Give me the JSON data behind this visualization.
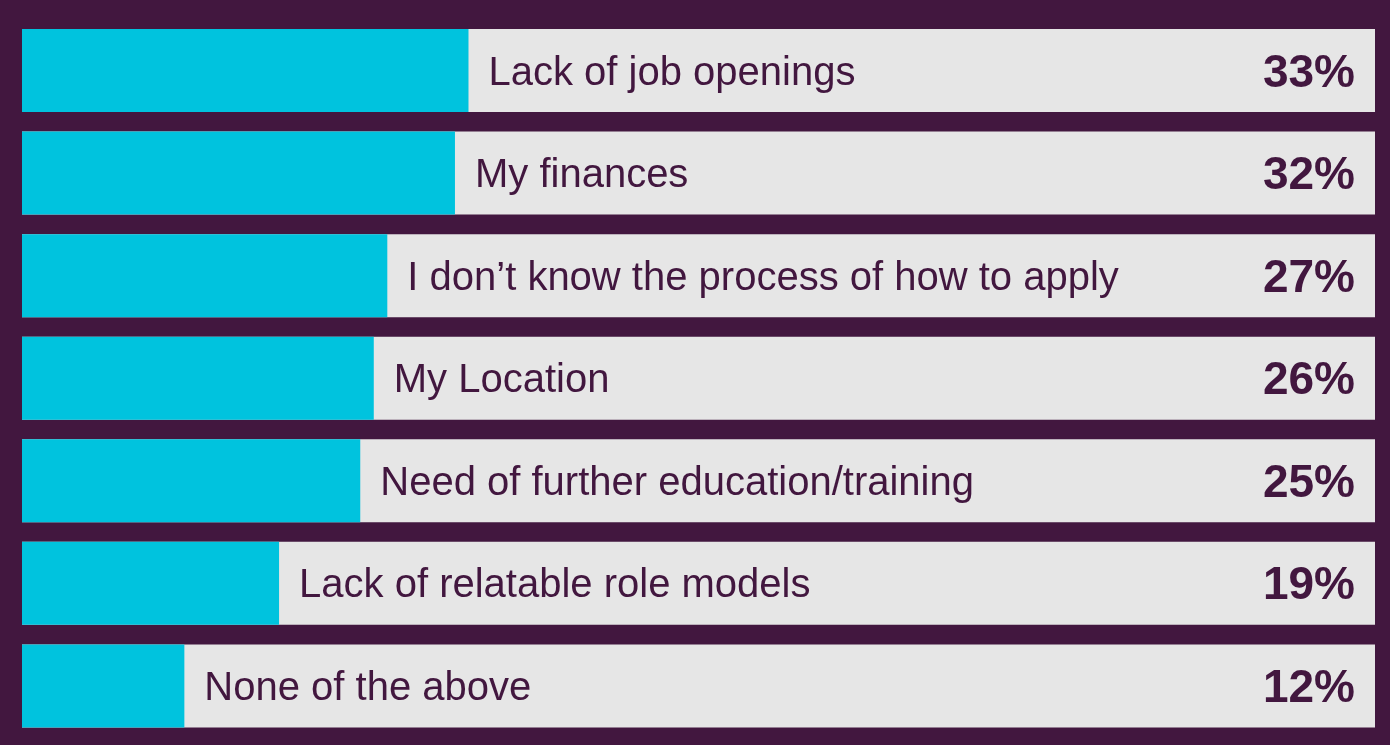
{
  "chart_data": {
    "type": "bar",
    "orientation": "horizontal",
    "categories": [
      "Lack of job openings",
      "My finances",
      "I don’t know the process of how to apply",
      "My Location",
      "Need of further education/training",
      "Lack of relatable role models",
      "None of the above"
    ],
    "values": [
      33,
      32,
      27,
      26,
      25,
      19,
      12
    ],
    "value_labels": [
      "33%",
      "32%",
      "27%",
      "26%",
      "25%",
      "19%",
      "12%"
    ],
    "color": "#00c3de",
    "xlim": [
      0,
      100
    ],
    "grid": false,
    "legend": false
  }
}
